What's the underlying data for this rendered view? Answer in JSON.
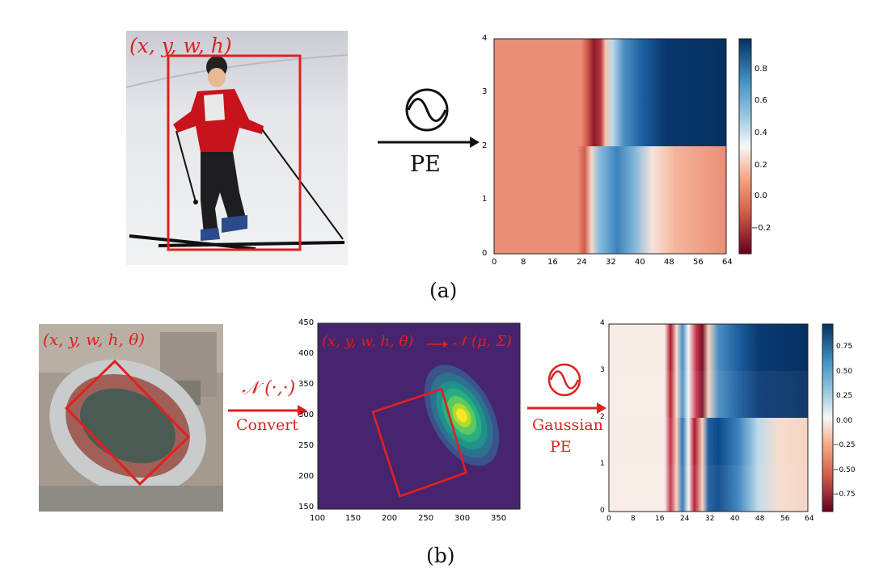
{
  "panel_a": {
    "photo_label": "(x, y, w, h)",
    "pe_label": "PE",
    "caption": "(a)",
    "heatmap": {
      "y_ticks": [
        "0",
        "1",
        "2",
        "3",
        "4"
      ],
      "x_ticks": [
        "0",
        "8",
        "16",
        "24",
        "32",
        "40",
        "48",
        "56",
        "64"
      ],
      "colorbar_ticks": [
        "0.8",
        "0.6",
        "0.4",
        "0.2",
        "0.0",
        "−0.2"
      ]
    }
  },
  "panel_b": {
    "photo_label": "(x, y, w, h, θ)",
    "gauss_sym": "𝒩 (·,·)",
    "convert_label": "Convert",
    "mid_label_left": "(x, y, w, h, θ)",
    "mid_label_right": "𝒩 (μ, Σ)",
    "mid_y_ticks": [
      "450",
      "400",
      "350",
      "300",
      "250",
      "200",
      "150"
    ],
    "mid_x_ticks": [
      "100",
      "150",
      "200",
      "250",
      "300",
      "350"
    ],
    "gaussian_pe_line1": "Gaussian",
    "gaussian_pe_line2": "PE",
    "caption": "(b)",
    "heatmap": {
      "y_ticks": [
        "0",
        "1",
        "2",
        "3",
        "4"
      ],
      "x_ticks": [
        "0",
        "8",
        "16",
        "24",
        "32",
        "40",
        "48",
        "56",
        "64"
      ],
      "colorbar_ticks": [
        "0.75",
        "0.50",
        "0.25",
        "0.00",
        "−0.25",
        "−0.50",
        "−0.75"
      ]
    }
  },
  "colors": {
    "red": "#e02020",
    "viridis_bg": "#46246e"
  }
}
